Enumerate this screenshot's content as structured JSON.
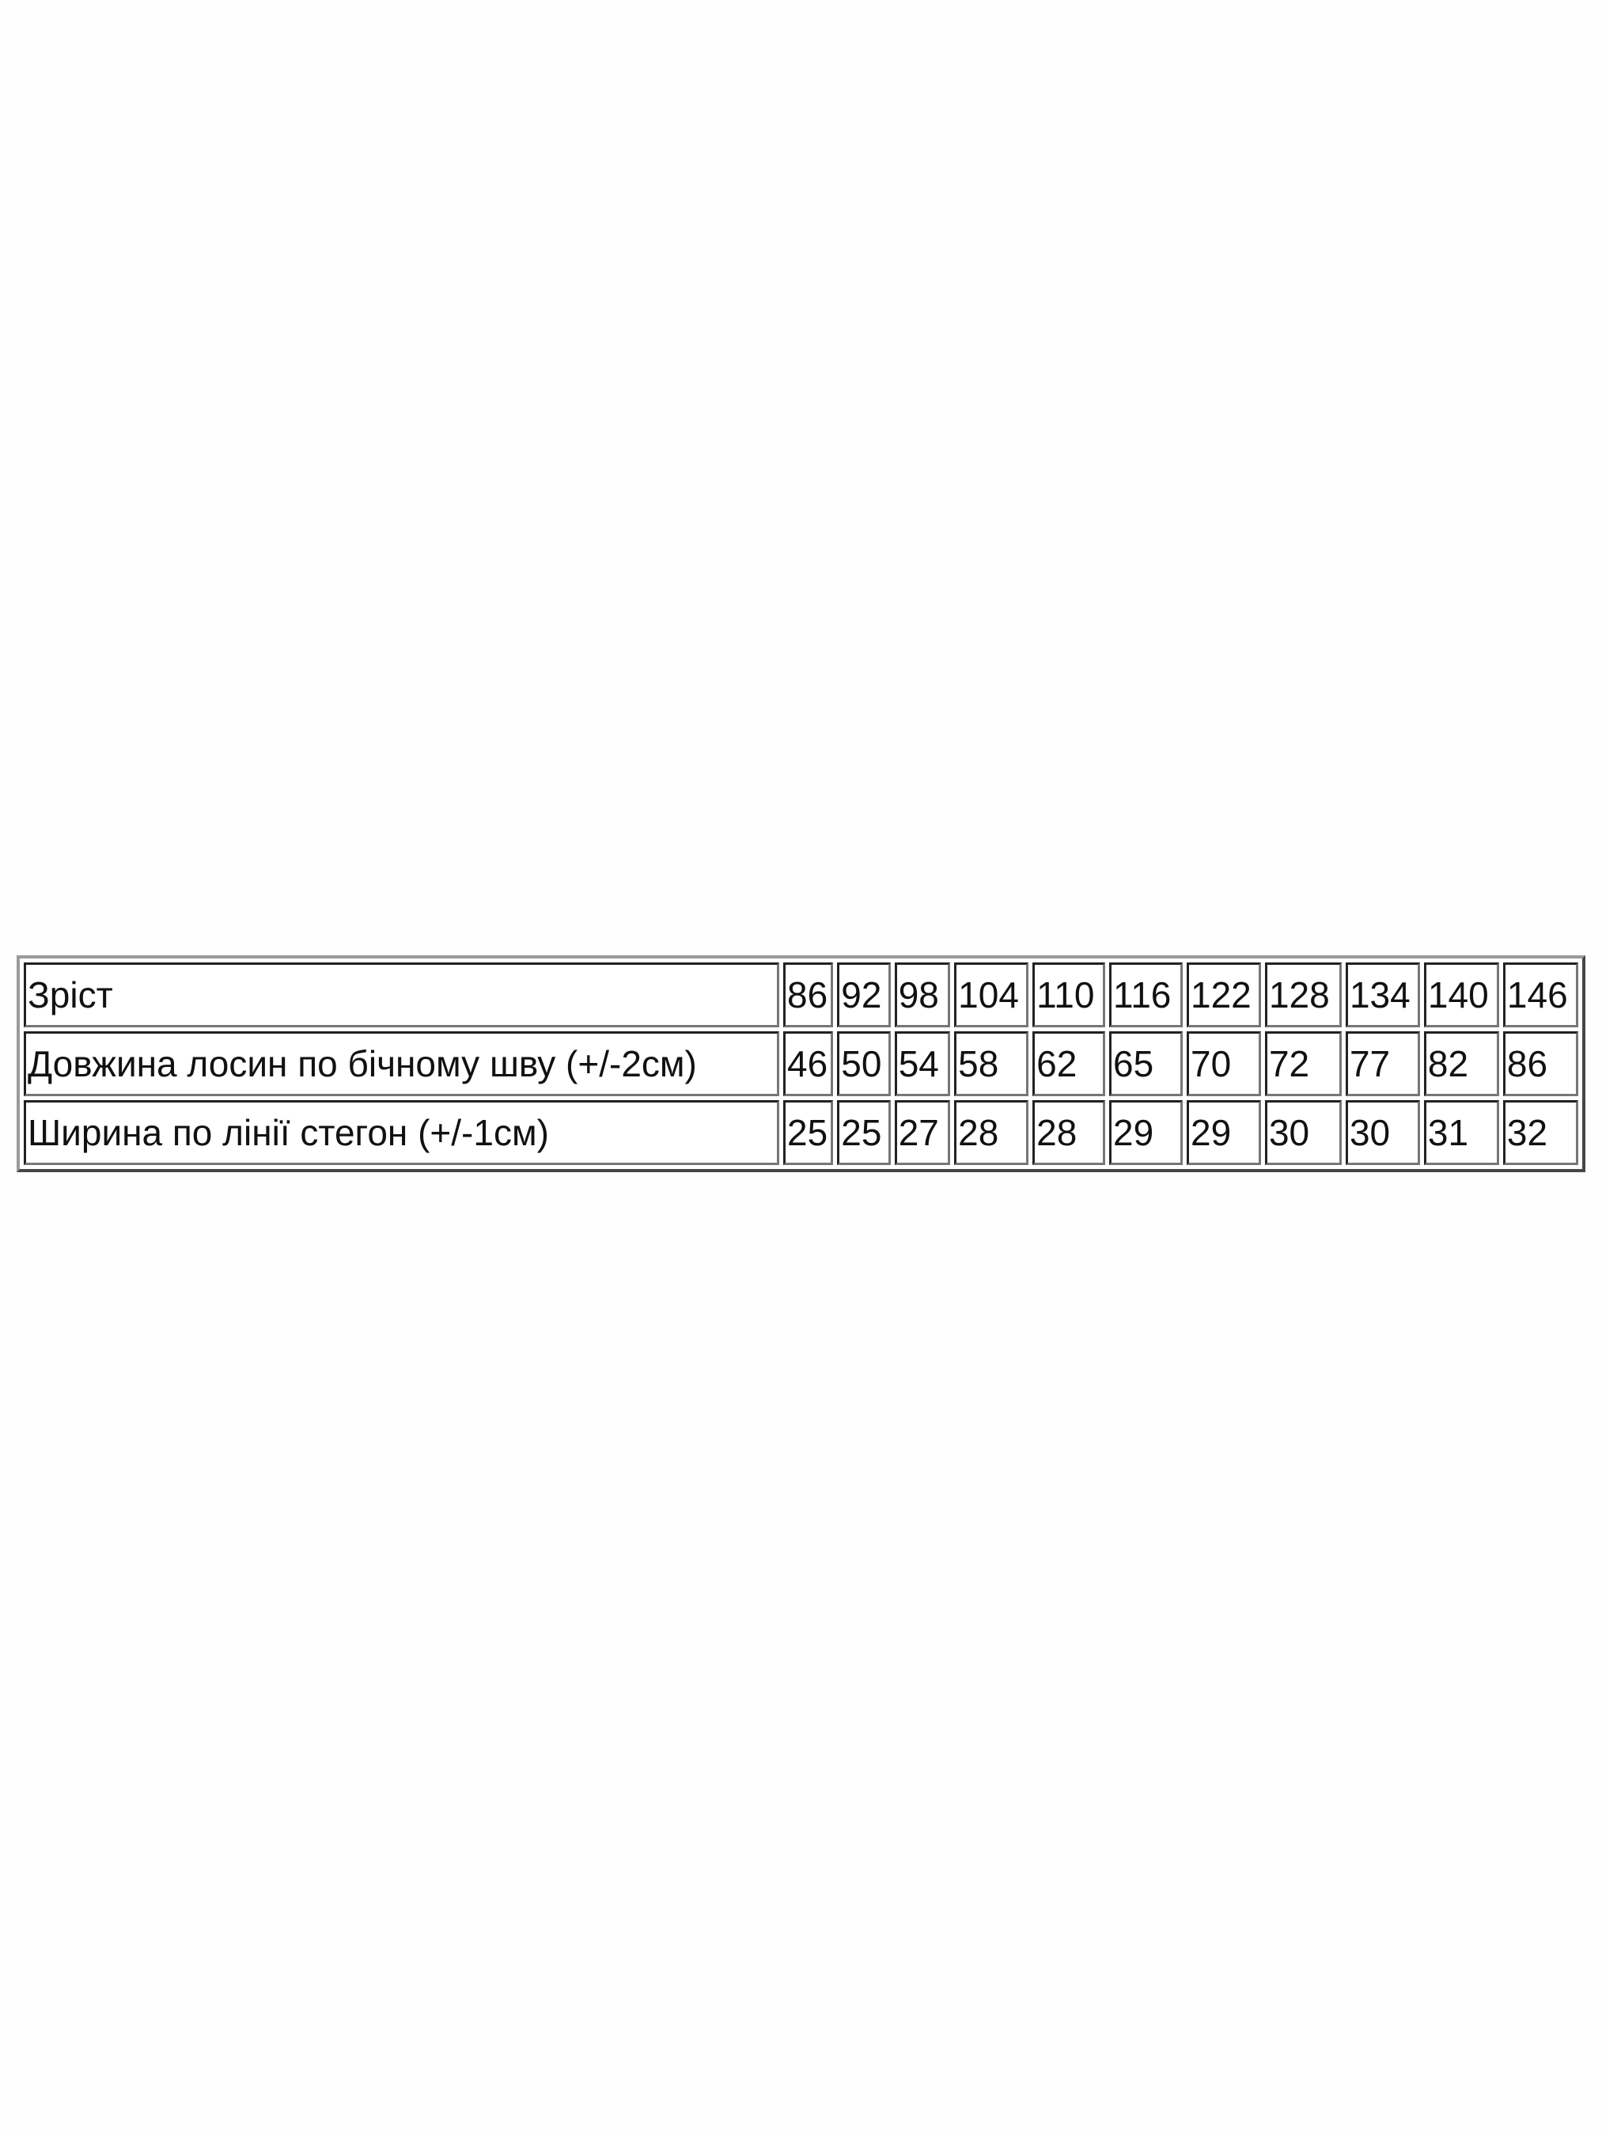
{
  "size_table": {
    "columns": [
      "86",
      "92",
      "98",
      "104",
      "110",
      "116",
      "122",
      "128",
      "134",
      "140",
      "146"
    ],
    "rows": [
      {
        "label": "Зріст",
        "values": [
          "86",
          "92",
          "98",
          "104",
          "110",
          "116",
          "122",
          "128",
          "134",
          "140",
          "146"
        ]
      },
      {
        "label": "Довжина лосин по бічному шву (+/-2см)",
        "values": [
          "46",
          "50",
          "54",
          "58",
          "62",
          "65",
          "70",
          "72",
          "77",
          "82",
          "86"
        ]
      },
      {
        "label": "Ширина по лінії стегон (+/-1см)",
        "values": [
          "25",
          "25",
          "27",
          "28",
          "28",
          "29",
          "29",
          "30",
          "30",
          "31",
          "32"
        ]
      }
    ]
  }
}
